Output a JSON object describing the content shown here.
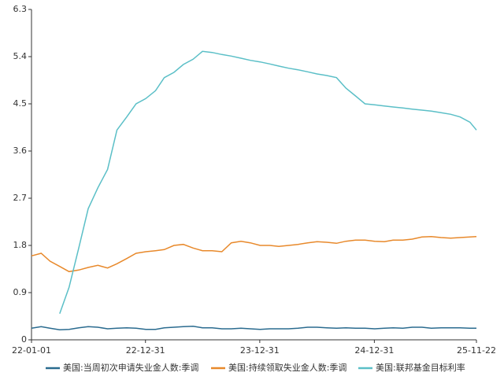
{
  "chart_data": {
    "type": "line",
    "x": [
      "2022-01-01",
      "2022-02-01",
      "2022-03-01",
      "2022-04-01",
      "2022-05-01",
      "2022-06-01",
      "2022-07-01",
      "2022-08-01",
      "2022-09-01",
      "2022-10-01",
      "2022-11-01",
      "2022-12-01",
      "2023-01-01",
      "2023-02-01",
      "2023-03-01",
      "2023-04-01",
      "2023-05-01",
      "2023-06-01",
      "2023-07-01",
      "2023-08-01",
      "2023-09-01",
      "2023-10-01",
      "2023-11-01",
      "2023-12-01",
      "2024-01-01",
      "2024-02-01",
      "2024-03-01",
      "2024-04-01",
      "2024-05-01",
      "2024-06-01",
      "2024-07-01",
      "2024-08-01",
      "2024-09-01",
      "2024-10-01",
      "2024-11-01",
      "2024-12-01",
      "2025-01-01",
      "2025-02-01",
      "2025-03-01",
      "2025-04-01",
      "2025-05-01",
      "2025-06-01",
      "2025-07-01",
      "2025-08-01",
      "2025-09-01",
      "2025-10-01",
      "2025-11-01",
      "2025-11-22"
    ],
    "series": [
      {
        "name": "美国:当周初次申请失业金人数:季调",
        "color": "#2a6b8f",
        "values": [
          0.22,
          0.25,
          0.22,
          0.19,
          0.2,
          0.23,
          0.25,
          0.24,
          0.21,
          0.22,
          0.23,
          0.22,
          0.2,
          0.2,
          0.23,
          0.24,
          0.25,
          0.26,
          0.23,
          0.23,
          0.21,
          0.21,
          0.22,
          0.21,
          0.2,
          0.21,
          0.21,
          0.21,
          0.22,
          0.24,
          0.24,
          0.23,
          0.22,
          0.23,
          0.22,
          0.22,
          0.21,
          0.22,
          0.23,
          0.22,
          0.24,
          0.24,
          0.22,
          0.23,
          0.23,
          0.23,
          0.22,
          0.22
        ]
      },
      {
        "name": "美国:持续领取失业金人数:季调",
        "color": "#e8892b",
        "values": [
          1.6,
          1.65,
          1.5,
          1.4,
          1.3,
          1.33,
          1.38,
          1.42,
          1.37,
          1.45,
          1.55,
          1.65,
          1.68,
          1.7,
          1.72,
          1.8,
          1.82,
          1.75,
          1.7,
          1.7,
          1.68,
          1.85,
          1.88,
          1.85,
          1.8,
          1.8,
          1.78,
          1.8,
          1.82,
          1.85,
          1.87,
          1.86,
          1.84,
          1.88,
          1.9,
          1.9,
          1.88,
          1.87,
          1.9,
          1.9,
          1.92,
          1.96,
          1.97,
          1.95,
          1.94,
          1.95,
          1.96,
          1.97
        ]
      },
      {
        "name": "美国:联邦基金目标利率",
        "color": "#5bbfc7",
        "values": [
          null,
          null,
          null,
          0.5,
          1.0,
          1.75,
          2.5,
          2.9,
          3.25,
          4.0,
          4.25,
          4.5,
          4.6,
          4.75,
          5.0,
          5.1,
          5.25,
          5.35,
          5.5,
          5.48,
          5.44,
          5.41,
          5.37,
          5.33,
          5.3,
          5.26,
          5.22,
          5.18,
          5.15,
          5.11,
          5.07,
          5.04,
          5.0,
          4.8,
          4.65,
          4.5,
          4.48,
          4.46,
          4.44,
          4.42,
          4.4,
          4.38,
          4.36,
          4.33,
          4.3,
          4.25,
          4.15,
          4.0
        ]
      }
    ],
    "xlim": [
      "2022-01-01",
      "2025-11-22"
    ],
    "xticks": [
      {
        "value": "2022-01-01",
        "label": "22-01-01"
      },
      {
        "value": "2022-12-31",
        "label": "22-12-31"
      },
      {
        "value": "2023-12-31",
        "label": "23-12-31"
      },
      {
        "value": "2024-12-31",
        "label": "24-12-31"
      },
      {
        "value": "2025-11-22",
        "label": "25-11-22"
      }
    ],
    "ylim": [
      0,
      6.3
    ],
    "yticks": [
      0,
      0.9,
      1.8,
      2.7,
      3.6,
      4.5,
      5.4,
      6.3
    ],
    "legend": "bottom"
  }
}
